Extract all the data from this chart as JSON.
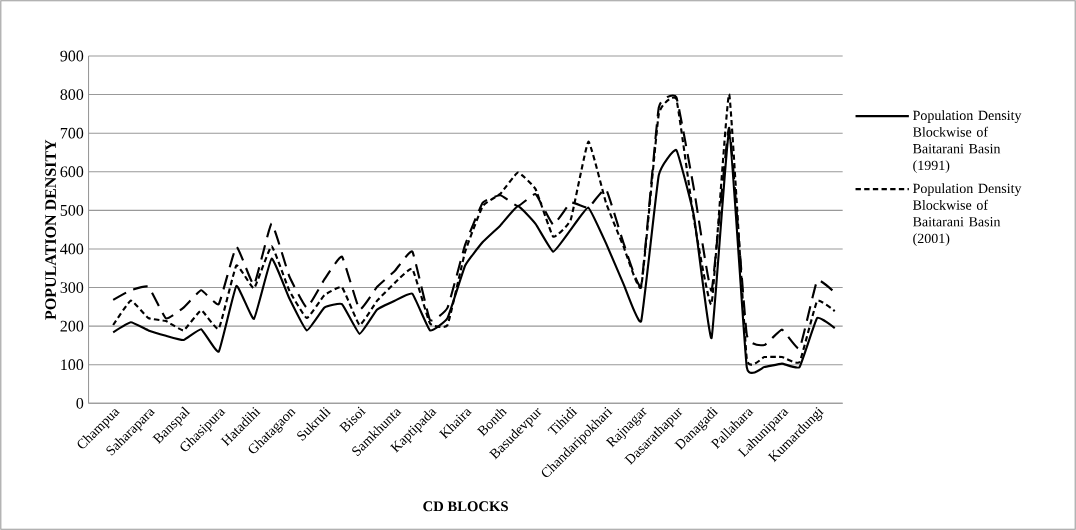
{
  "chart_data": {
    "type": "line",
    "xlabel": "CD BLOCKS",
    "ylabel": "POPULATION DENSITY",
    "categories": [
      "Champua",
      null,
      "Saharapara",
      null,
      "Banspal",
      null,
      "Ghasipura",
      null,
      "Hatadihi",
      null,
      "Ghatagaon",
      null,
      "Sukruli",
      null,
      "Bisoi",
      null,
      "Samkhunta",
      null,
      "Kaptipada",
      null,
      "Khaira",
      null,
      "Bonth",
      null,
      "Basudevpur",
      null,
      "Tihidi",
      null,
      "Chandaripokhari",
      null,
      "Rajnagar",
      null,
      "Dasarathapur",
      null,
      "Danagadi",
      null,
      "Pallahara",
      null,
      "Lahunipara",
      null,
      "Kumardungi",
      null
    ],
    "ylim": [
      0,
      900
    ],
    "yticks": [
      0,
      100,
      200,
      300,
      400,
      500,
      600,
      700,
      800,
      900
    ],
    "grid": "y",
    "legend": "right",
    "series": [
      {
        "name": "Population Density Blockwise of Baitarani Basin (1991)",
        "color": "#000000",
        "line_style": "solid",
        "values": [
          184,
          210,
          189,
          175,
          164,
          192,
          134,
          304,
          219,
          375,
          273,
          189,
          248,
          257,
          180,
          243,
          266,
          284,
          189,
          221,
          357,
          418,
          461,
          511,
          465,
          393,
          450,
          507,
          415,
          309,
          213,
          591,
          656,
          485,
          169,
          705,
          94,
          94,
          103,
          94,
          221,
          195
        ]
      },
      {
        "name": "Population Density Blockwise of Baitarani Basin (2001)",
        "color": "#000000",
        "line_style": "dashed",
        "values": [
          203,
          266,
          221,
          213,
          189,
          241,
          193,
          357,
          298,
          407,
          293,
          221,
          280,
          301,
          203,
          266,
          312,
          348,
          207,
          203,
          393,
          511,
          543,
          598,
          555,
          432,
          476,
          678,
          520,
          406,
          301,
          749,
          788,
          476,
          257,
          801,
          116,
          120,
          120,
          107,
          265,
          239
        ]
      },
      {
        "color": "#000000",
        "line_style": "dashed",
        "values": [
          268,
          293,
          302,
          220,
          248,
          293,
          257,
          406,
          307,
          466,
          330,
          248,
          321,
          380,
          243,
          302,
          343,
          393,
          216,
          248,
          411,
          520,
          539,
          511,
          542,
          463,
          520,
          507,
          555,
          415,
          305,
          766,
          793,
          555,
          292,
          714,
          178,
          151,
          191,
          142,
          318,
          287
        ]
      }
    ]
  }
}
